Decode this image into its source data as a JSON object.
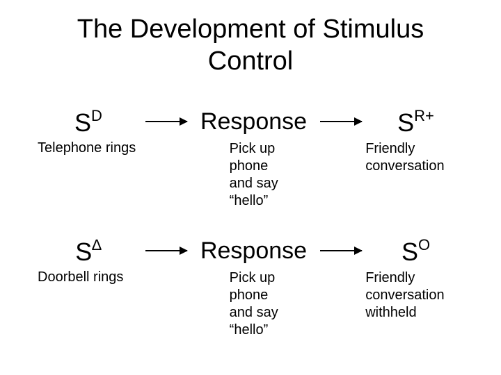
{
  "title_line1": "The Development of Stimulus",
  "title_line2": "Control",
  "row1": {
    "stim": {
      "base": "S",
      "sup": "D"
    },
    "response": "Response",
    "result": {
      "base": "S",
      "sup": "R+"
    },
    "stim_sub": "Telephone rings",
    "response_sub": "Pick up\nphone\nand say\n“hello”",
    "result_sub": "Friendly\nconversation"
  },
  "row2": {
    "stim": {
      "base": "S",
      "sup": "∆"
    },
    "response": "Response",
    "result": {
      "base": "S",
      "sup": "O"
    },
    "stim_sub": "Doorbell rings",
    "response_sub": "Pick up\nphone\nand say\n“hello”",
    "result_sub": "Friendly\nconversation\nwithheld"
  },
  "colors": {
    "background": "#ffffff",
    "text": "#000000",
    "arrow": "#000000"
  },
  "fonts": {
    "title_size": 38,
    "symbol_size": 36,
    "sup_size": 22,
    "response_size": 34,
    "sub_size": 20
  }
}
